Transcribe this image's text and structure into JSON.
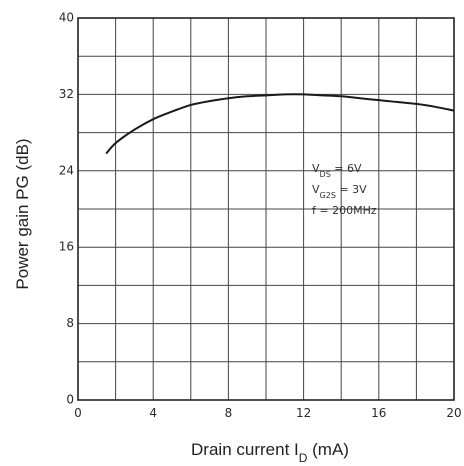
{
  "chart_data": {
    "type": "line",
    "title": "",
    "xlabel": "Drain current I",
    "xlabel_sub": "D",
    "xlabel_unit": " (mA)",
    "ylabel": "Power gain PG (dB)",
    "xlim": [
      0,
      20
    ],
    "ylim": [
      0,
      40
    ],
    "x_ticks": [
      "0",
      "4",
      "8",
      "12",
      "16",
      "20"
    ],
    "y_ticks": [
      "0",
      "8",
      "16",
      "24",
      "32",
      "40"
    ],
    "grid": true,
    "series": [
      {
        "x": [
          1.5,
          2,
          3,
          4,
          5,
          6,
          7,
          8,
          9,
          10,
          11,
          12,
          13,
          14,
          15,
          16,
          17,
          18,
          19,
          20
        ],
        "y": [
          25.8,
          26.9,
          28.3,
          29.4,
          30.2,
          30.9,
          31.3,
          31.6,
          31.8,
          31.9,
          32.0,
          32.0,
          31.9,
          31.8,
          31.6,
          31.4,
          31.2,
          31.0,
          30.7,
          30.3
        ]
      }
    ],
    "annotation": [
      "Vₓₛ = 6V",
      "Vₐ₂ₛ = 3V",
      "f = 200MHz"
    ],
    "annotation_lines": [
      {
        "main": "V",
        "sub": "DS",
        "rest": " = 6V"
      },
      {
        "main": "V",
        "sub": "G2S",
        "rest": " = 3V"
      },
      {
        "main": "f = 200MHz",
        "sub": "",
        "rest": ""
      }
    ]
  }
}
